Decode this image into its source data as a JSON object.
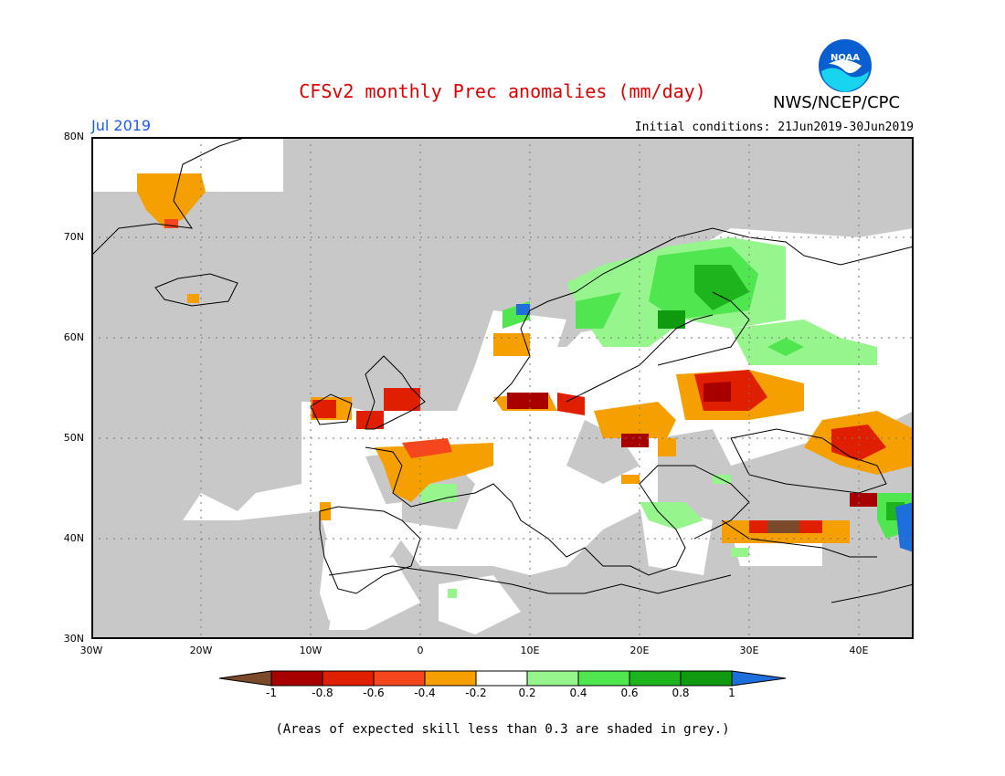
{
  "header": {
    "title": "CFSv2 monthly Prec anomalies (mm/day)",
    "org": "NWS/NCEP/CPC",
    "logo_text": "NOAA",
    "month": "Jul 2019",
    "initial_conditions": "Initial conditions: 21Jun2019-30Jun2019"
  },
  "map": {
    "lat_labels": [
      "80N",
      "70N",
      "60N",
      "50N",
      "40N",
      "30N"
    ],
    "lon_labels": [
      "30W",
      "20W",
      "10W",
      "0",
      "10E",
      "20E",
      "30E",
      "40E"
    ],
    "lon_range": [
      -30,
      45
    ],
    "lat_range": [
      30,
      80
    ],
    "no_skill_color": "#c8c8c8",
    "ocean_skill_color": "#ffffff"
  },
  "colorbar": {
    "labels": [
      "-1",
      "-0.8",
      "-0.6",
      "-0.4",
      "-0.2",
      "0.2",
      "0.4",
      "0.6",
      "0.8",
      "1"
    ],
    "colors": [
      "#7a4a2a",
      "#a80000",
      "#e01e00",
      "#f5461e",
      "#f5a000",
      "#ffffff",
      "#96f58c",
      "#50e650",
      "#1eb41e",
      "#0f9a0f",
      "#1e6edc"
    ]
  },
  "footnote": "(Areas of expected skill less than 0.3 are shaded in grey.)"
}
